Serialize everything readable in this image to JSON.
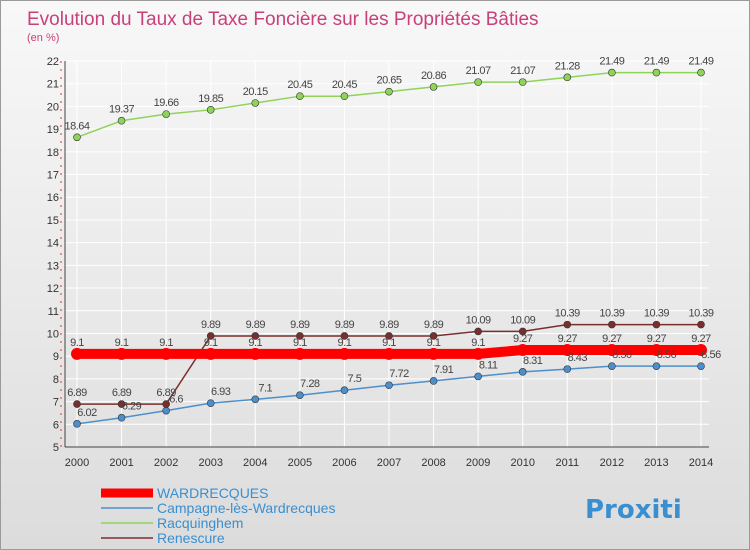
{
  "chart_data": {
    "type": "line",
    "title": "Evolution du Taux de Taxe Foncière sur les Propriétés Bâties",
    "subtitle": "(en %)",
    "x": [
      "2000",
      "2001",
      "2002",
      "2003",
      "2004",
      "2005",
      "2006",
      "2007",
      "2008",
      "2009",
      "2010",
      "2011",
      "2012",
      "2013",
      "2014"
    ],
    "ylim": [
      5,
      22
    ],
    "yticks": [
      5,
      6,
      7,
      8,
      9,
      10,
      11,
      12,
      13,
      14,
      15,
      16,
      17,
      18,
      19,
      20,
      21,
      22
    ],
    "grid": true,
    "legend_position": "bottom-left",
    "series": [
      {
        "name": "WARDRECQUES",
        "color": "#ff0000",
        "values": [
          9.1,
          9.1,
          9.1,
          9.1,
          9.1,
          9.1,
          9.1,
          9.1,
          9.1,
          9.1,
          9.27,
          9.27,
          9.27,
          9.27,
          9.27
        ],
        "labels": [
          "9.1",
          "9.1",
          "9.1",
          "9.1",
          "9.1",
          "9.1",
          "9.1",
          "9.1",
          "9.1",
          "9.1",
          "9.27",
          "9.27",
          "9.27",
          "9.27",
          "9.27"
        ]
      },
      {
        "name": "Campagne-lès-Wardrecques",
        "color": "#4d8fcb",
        "values": [
          6.02,
          6.29,
          6.6,
          6.93,
          7.1,
          7.28,
          7.5,
          7.72,
          7.91,
          8.11,
          8.31,
          8.43,
          8.56,
          8.56,
          8.56
        ],
        "labels": [
          "6.02",
          "6.29",
          "6.6",
          "6.93",
          "7.1",
          "7.28",
          "7.5",
          "7.72",
          "7.91",
          "8.11",
          "8.31",
          "8.43",
          "8.56",
          "8.56",
          "8.56"
        ]
      },
      {
        "name": "Racquinghem",
        "color": "#8fd35a",
        "values": [
          18.64,
          19.37,
          19.66,
          19.85,
          20.15,
          20.45,
          20.45,
          20.65,
          20.86,
          21.07,
          21.07,
          21.28,
          21.49,
          21.49,
          21.49
        ],
        "labels": [
          "18.64",
          "19.37",
          "19.66",
          "19.85",
          "20.15",
          "20.45",
          "20.45",
          "20.65",
          "20.86",
          "21.07",
          "21.07",
          "21.28",
          "21.49",
          "21.49",
          "21.49"
        ]
      },
      {
        "name": "Renescure",
        "color": "#7a2f2f",
        "values": [
          6.89,
          6.89,
          6.89,
          9.89,
          9.89,
          9.89,
          9.89,
          9.89,
          9.89,
          10.09,
          10.09,
          10.39,
          10.39,
          10.39,
          10.39
        ],
        "labels": [
          "6.89",
          "6.89",
          "6.89",
          "9.89",
          "9.89",
          "9.89",
          "9.89",
          "9.89",
          "9.89",
          "10.09",
          "10.09",
          "10.39",
          "10.39",
          "10.39",
          "10.39"
        ]
      }
    ]
  },
  "logo": {
    "text": "Proxiti"
  }
}
